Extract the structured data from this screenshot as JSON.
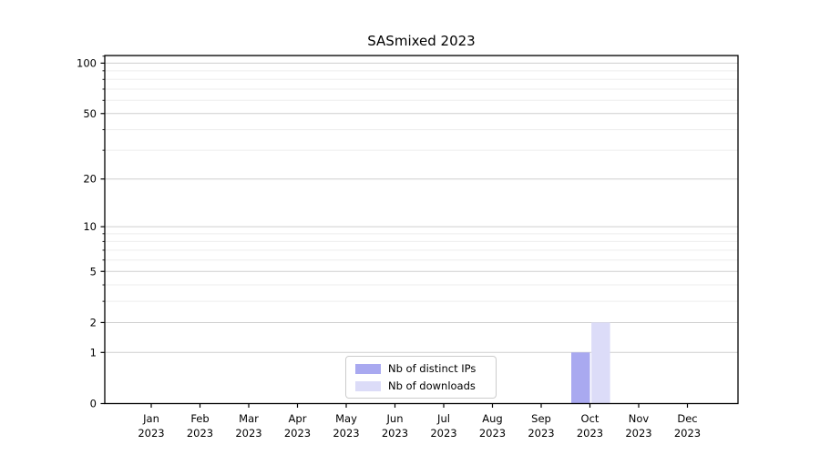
{
  "title": "SASmixed 2023",
  "chart_data": {
    "type": "bar",
    "title": "SASmixed 2023",
    "categories": [
      "Jan 2023",
      "Feb 2023",
      "Mar 2023",
      "Apr 2023",
      "May 2023",
      "Jun 2023",
      "Jul 2023",
      "Aug 2023",
      "Sep 2023",
      "Oct 2023",
      "Nov 2023",
      "Dec 2023"
    ],
    "series": [
      {
        "name": "Nb of distinct IPs",
        "color": "#a9a9f0",
        "values": [
          0,
          0,
          0,
          0,
          0,
          0,
          0,
          0,
          0,
          1,
          0,
          0
        ]
      },
      {
        "name": "Nb of downloads",
        "color": "#dcdcf8",
        "values": [
          0,
          0,
          0,
          0,
          0,
          0,
          0,
          0,
          0,
          2,
          0,
          0
        ]
      }
    ],
    "y_scale": "log1p",
    "y_ticks": [
      0,
      1,
      2,
      5,
      10,
      20,
      50,
      100
    ],
    "y_minor_ticks": [
      3,
      4,
      6,
      7,
      8,
      9,
      30,
      40,
      60,
      70,
      80,
      90,
      110
    ],
    "ylim": [
      0,
      111
    ],
    "xlabel": "",
    "ylabel": "",
    "grid": "horizontal",
    "legend_position": "lower-center-inside",
    "colors": {
      "axis": "#000000",
      "tick_label": "#000000",
      "grid_major": "#cfcfcf",
      "grid_minor": "#ededed",
      "background": "#ffffff"
    }
  }
}
